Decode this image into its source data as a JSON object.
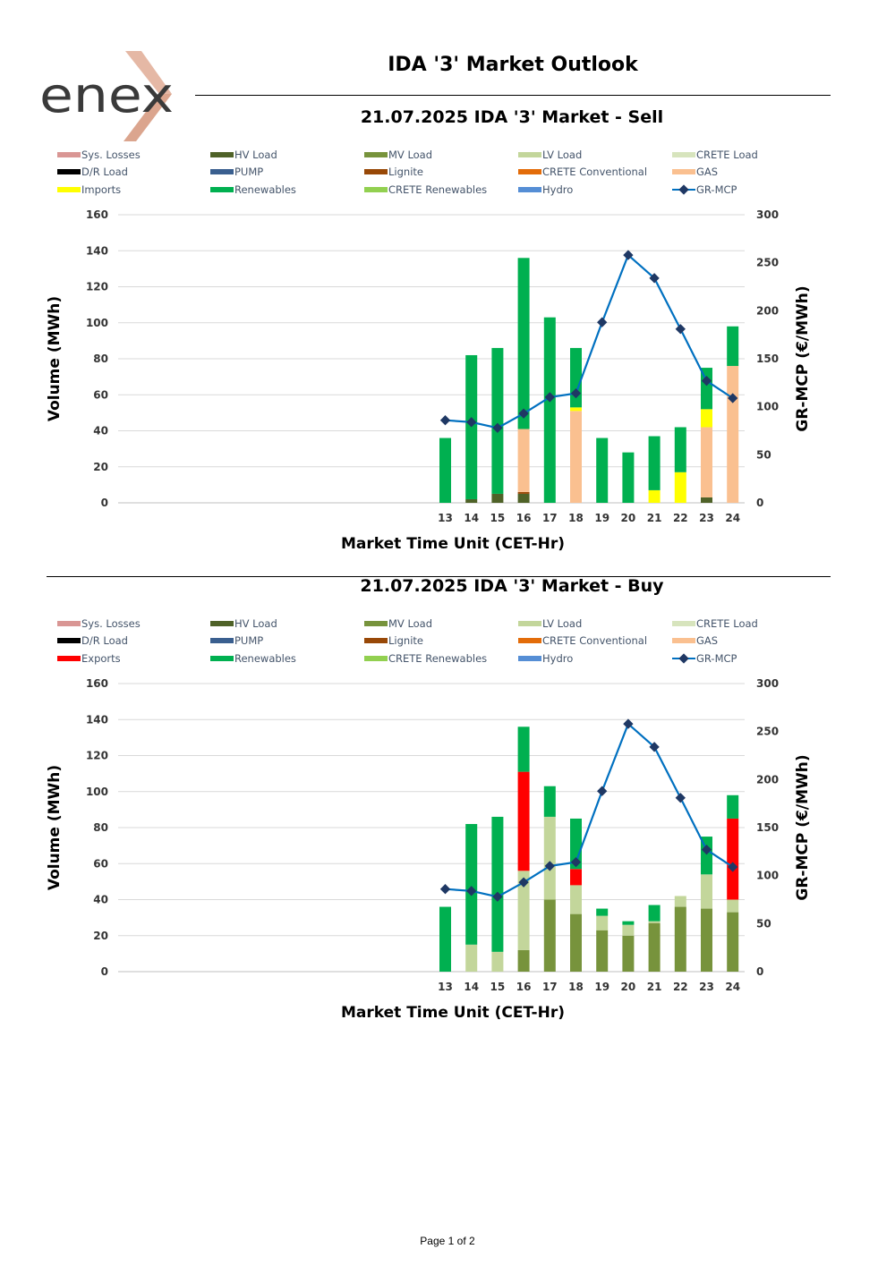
{
  "header": {
    "logo_text": "enex",
    "title": "IDA '3' Market Outlook"
  },
  "footer": {
    "page_label": "Page 1 of 2"
  },
  "colors": {
    "Sys. Losses": "#d99694",
    "HV Load": "#4f6228",
    "MV Load": "#77933c",
    "LV Load": "#c3d69b",
    "CRETE Load": "#d7e4bd",
    "D/R Load": "#000000",
    "PUMP": "#3a5f8f",
    "Lignite": "#984807",
    "CRETE Conventional": "#e36c09",
    "GAS": "#fac090",
    "Imports": "#ffff00",
    "Exports": "#ff0000",
    "Renewables": "#00b050",
    "CRETE Renewables": "#92d050",
    "Hydro": "#558ed5",
    "GR-MCP": "#0070c0",
    "GR-MCP-marker": "#1f3864"
  },
  "chart_data": [
    {
      "type": "bar",
      "stacked": true,
      "title": "21.07.2025  IDA '3' Market - Sell",
      "xlabel": "Market Time Unit (CET-Hr)",
      "ylabel": "Volume (MWh)",
      "y2label": "GR-MCP (€/MWh)",
      "ylim": [
        0,
        160
      ],
      "y2lim": [
        0,
        300
      ],
      "yticks": [
        0,
        20,
        40,
        60,
        80,
        100,
        120,
        140,
        160
      ],
      "y2ticks": [
        0,
        50,
        100,
        150,
        200,
        250,
        300
      ],
      "categories": [
        "13",
        "14",
        "15",
        "16",
        "17",
        "18",
        "19",
        "20",
        "21",
        "22",
        "23",
        "24"
      ],
      "legend": [
        "Sys. Losses",
        "HV Load",
        "MV Load",
        "LV Load",
        "CRETE Load",
        "D/R Load",
        "PUMP",
        "Lignite",
        "CRETE Conventional",
        "GAS",
        "Imports",
        "Renewables",
        "CRETE Renewables",
        "Hydro",
        "GR-MCP"
      ],
      "series": [
        {
          "name": "HV Load",
          "values": [
            0,
            2,
            5,
            5,
            0,
            0,
            0,
            0,
            0,
            0,
            3,
            0
          ]
        },
        {
          "name": "Lignite",
          "values": [
            0,
            0,
            0,
            1,
            0,
            0,
            0,
            0,
            0,
            0,
            0,
            0
          ]
        },
        {
          "name": "GAS",
          "values": [
            0,
            0,
            0,
            35,
            0,
            51,
            0,
            0,
            0,
            0,
            39,
            76
          ]
        },
        {
          "name": "Imports",
          "values": [
            0,
            0,
            0,
            0,
            0,
            2,
            0,
            0,
            7,
            17,
            10,
            0
          ]
        },
        {
          "name": "Renewables",
          "values": [
            36,
            80,
            81,
            95,
            103,
            33,
            36,
            28,
            30,
            25,
            23,
            22
          ]
        }
      ],
      "line": {
        "name": "GR-MCP",
        "values": [
          86,
          84,
          78,
          93,
          110,
          114,
          188,
          258,
          234,
          181,
          127,
          109
        ]
      }
    },
    {
      "type": "bar",
      "stacked": true,
      "title": "21.07.2025  IDA '3' Market - Buy",
      "xlabel": "Market Time Unit (CET-Hr)",
      "ylabel": "Volume (MWh)",
      "y2label": "GR-MCP (€/MWh)",
      "ylim": [
        0,
        160
      ],
      "y2lim": [
        0,
        300
      ],
      "yticks": [
        0,
        20,
        40,
        60,
        80,
        100,
        120,
        140,
        160
      ],
      "y2ticks": [
        0,
        50,
        100,
        150,
        200,
        250,
        300
      ],
      "categories": [
        "13",
        "14",
        "15",
        "16",
        "17",
        "18",
        "19",
        "20",
        "21",
        "22",
        "23",
        "24"
      ],
      "legend": [
        "Sys. Losses",
        "HV Load",
        "MV Load",
        "LV Load",
        "CRETE Load",
        "D/R Load",
        "PUMP",
        "Lignite",
        "CRETE Conventional",
        "GAS",
        "Exports",
        "Renewables",
        "CRETE Renewables",
        "Hydro",
        "GR-MCP"
      ],
      "series": [
        {
          "name": "MV Load",
          "values": [
            0,
            0,
            0,
            12,
            40,
            32,
            23,
            20,
            27,
            36,
            35,
            33
          ]
        },
        {
          "name": "LV Load",
          "values": [
            0,
            15,
            11,
            44,
            46,
            16,
            8,
            6,
            1,
            6,
            19,
            7
          ]
        },
        {
          "name": "Exports",
          "values": [
            0,
            0,
            0,
            55,
            0,
            9,
            0,
            0,
            0,
            0,
            0,
            45
          ]
        },
        {
          "name": "Renewables",
          "values": [
            36,
            67,
            75,
            25,
            17,
            28,
            4,
            2,
            9,
            0,
            21,
            13
          ]
        }
      ],
      "line": {
        "name": "GR-MCP",
        "values": [
          86,
          84,
          78,
          93,
          110,
          114,
          188,
          258,
          234,
          181,
          127,
          109
        ]
      }
    }
  ]
}
